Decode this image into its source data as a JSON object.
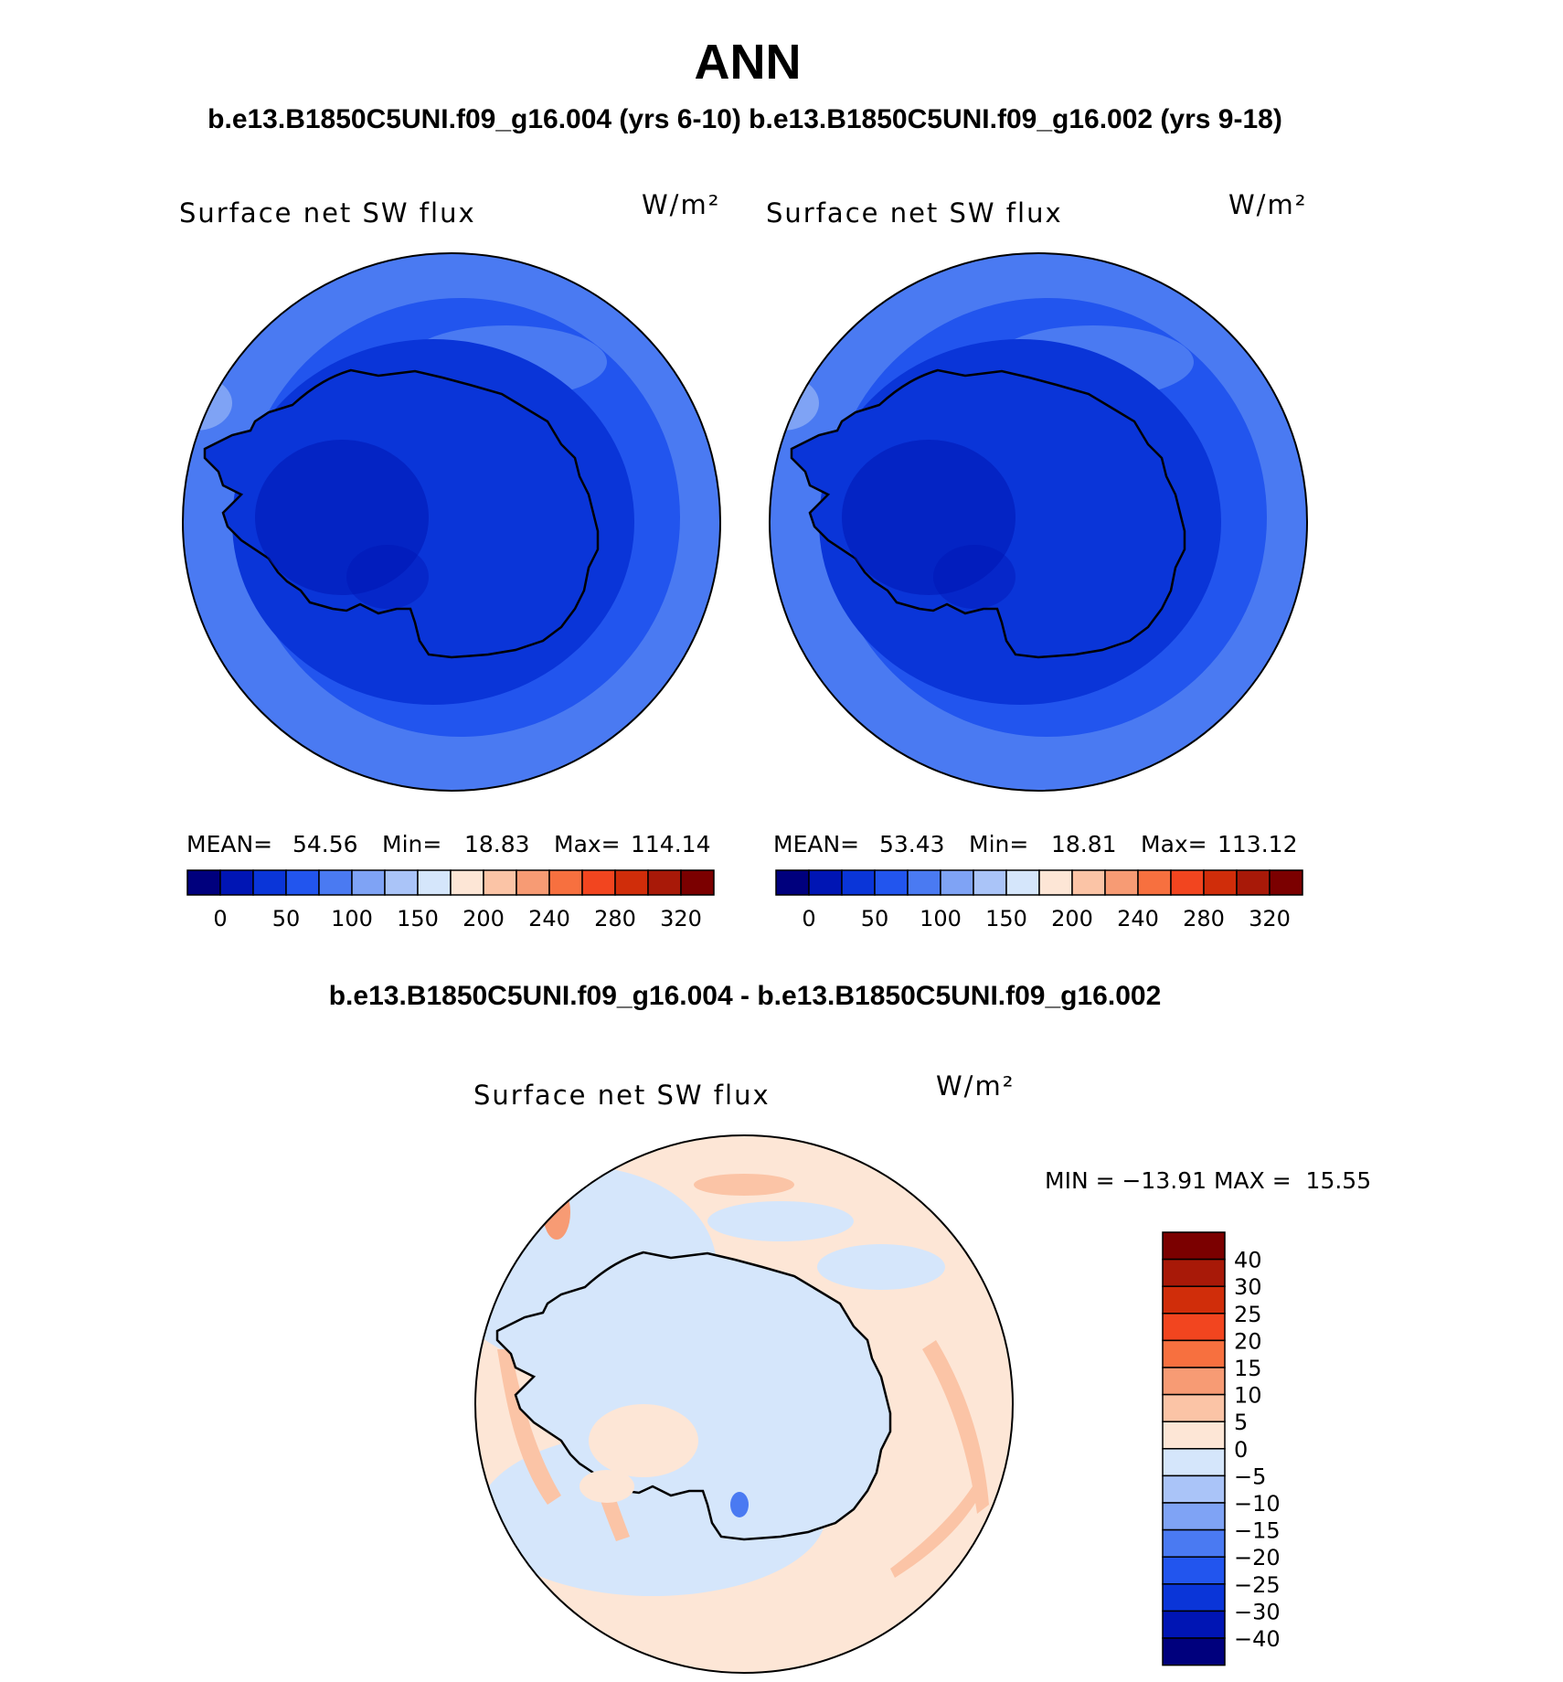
{
  "page": {
    "title": "ANN",
    "subtitle": "b.e13.B1850C5UNI.f09_g16.004 (yrs 6-10) b.e13.B1850C5UNI.f09_g16.002 (yrs 9-18)",
    "diff_title": "b.e13.B1850C5UNI.f09_g16.004 - b.e13.B1850C5UNI.f09_g16.002"
  },
  "chart_data": [
    {
      "type": "heatmap",
      "title": "Surface net SW flux",
      "units": "W/m²",
      "projection": "south polar stereographic",
      "stats": {
        "mean_label": "MEAN=",
        "mean": "54.56",
        "min_label": "Min=",
        "min": "18.83",
        "max_label": "Max=",
        "max": "114.14"
      },
      "colorbar": {
        "colors": [
          "#00007d",
          "#0015b4",
          "#0a35d8",
          "#2255ee",
          "#4a7af2",
          "#7fa3f5",
          "#aac4f8",
          "#d5e6fb",
          "#fde6d6",
          "#fbc4a6",
          "#f79b74",
          "#f7703f",
          "#f2451f",
          "#d02d0a",
          "#a81908",
          "#7b0000"
        ],
        "tick_labels": [
          "0",
          "50",
          "100",
          "150",
          "200",
          "240",
          "280",
          "320"
        ]
      }
    },
    {
      "type": "heatmap",
      "title": "Surface net SW flux",
      "units": "W/m²",
      "projection": "south polar stereographic",
      "stats": {
        "mean_label": "MEAN=",
        "mean": "53.43",
        "min_label": "Min=",
        "min": "18.81",
        "max_label": "Max=",
        "max": "113.12"
      },
      "colorbar": {
        "colors": [
          "#00007d",
          "#0015b4",
          "#0a35d8",
          "#2255ee",
          "#4a7af2",
          "#7fa3f5",
          "#aac4f8",
          "#d5e6fb",
          "#fde6d6",
          "#fbc4a6",
          "#f79b74",
          "#f7703f",
          "#f2451f",
          "#d02d0a",
          "#a81908",
          "#7b0000"
        ],
        "tick_labels": [
          "0",
          "50",
          "100",
          "150",
          "200",
          "240",
          "280",
          "320"
        ]
      }
    },
    {
      "type": "heatmap",
      "title": "Surface net SW flux",
      "units": "W/m²",
      "projection": "south polar stereographic",
      "stats": {
        "text": "MIN = −13.91 MAX =  15.55"
      },
      "colorbar": {
        "colors": [
          "#7b0000",
          "#a81908",
          "#d02d0a",
          "#f2451f",
          "#f7703f",
          "#f79b74",
          "#fbc4a6",
          "#fde6d6",
          "#d5e6fb",
          "#aac4f8",
          "#7fa3f5",
          "#4a7af2",
          "#2255ee",
          "#0a35d8",
          "#0015b4",
          "#00007d"
        ],
        "tick_labels": [
          "40",
          "30",
          "25",
          "20",
          "15",
          "10",
          "5",
          "0",
          "−5",
          "−10",
          "−15",
          "−20",
          "−25",
          "−30",
          "−40"
        ]
      }
    }
  ]
}
